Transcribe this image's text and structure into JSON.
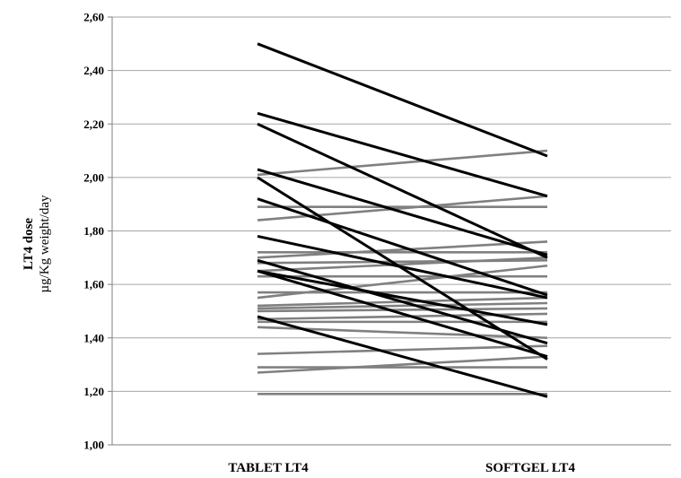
{
  "chart_data": {
    "type": "line",
    "categories": [
      "TABLET  LT4",
      "SOFTGEL LT4"
    ],
    "ylabel_line1": "LT4 dose",
    "ylabel_line2": "µg/Kg weight/day",
    "ylim": [
      1.0,
      2.6
    ],
    "yticks": [
      "1,00",
      "1,20",
      "1,40",
      "1,60",
      "1,80",
      "2,00",
      "2,20",
      "2,40",
      "2,60"
    ],
    "ytick_values": [
      1.0,
      1.2,
      1.4,
      1.6,
      1.8,
      2.0,
      2.2,
      2.4,
      2.6
    ],
    "grid": true,
    "series_colors": {
      "decrease": "#000000",
      "no-decrease": "#808080"
    },
    "series": [
      {
        "group": "decrease",
        "values": [
          2.5,
          2.08
        ]
      },
      {
        "group": "decrease",
        "values": [
          2.24,
          1.93
        ]
      },
      {
        "group": "decrease",
        "values": [
          2.2,
          1.7
        ]
      },
      {
        "group": "decrease",
        "values": [
          2.03,
          1.71
        ]
      },
      {
        "group": "decrease",
        "values": [
          2.0,
          1.32
        ]
      },
      {
        "group": "decrease",
        "values": [
          1.92,
          1.56
        ]
      },
      {
        "group": "decrease",
        "values": [
          1.78,
          1.55
        ]
      },
      {
        "group": "decrease",
        "values": [
          1.69,
          1.38
        ]
      },
      {
        "group": "decrease",
        "values": [
          1.65,
          1.45
        ]
      },
      {
        "group": "decrease",
        "values": [
          1.65,
          1.33
        ]
      },
      {
        "group": "decrease",
        "values": [
          1.48,
          1.18
        ]
      },
      {
        "group": "no-decrease",
        "values": [
          2.01,
          2.1
        ]
      },
      {
        "group": "no-decrease",
        "values": [
          1.89,
          1.89
        ]
      },
      {
        "group": "no-decrease",
        "values": [
          1.84,
          1.93
        ]
      },
      {
        "group": "no-decrease",
        "values": [
          1.72,
          1.72
        ]
      },
      {
        "group": "no-decrease",
        "values": [
          1.7,
          1.76
        ]
      },
      {
        "group": "no-decrease",
        "values": [
          1.68,
          1.69
        ]
      },
      {
        "group": "no-decrease",
        "values": [
          1.65,
          1.7
        ]
      },
      {
        "group": "no-decrease",
        "values": [
          1.63,
          1.63
        ]
      },
      {
        "group": "no-decrease",
        "values": [
          1.57,
          1.57
        ]
      },
      {
        "group": "no-decrease",
        "values": [
          1.55,
          1.67
        ]
      },
      {
        "group": "no-decrease",
        "values": [
          1.52,
          1.55
        ]
      },
      {
        "group": "no-decrease",
        "values": [
          1.51,
          1.53
        ]
      },
      {
        "group": "no-decrease",
        "values": [
          1.5,
          1.51
        ]
      },
      {
        "group": "no-decrease",
        "values": [
          1.47,
          1.49
        ]
      },
      {
        "group": "no-decrease",
        "values": [
          1.46,
          1.46
        ]
      },
      {
        "group": "no-decrease",
        "values": [
          1.44,
          1.4
        ]
      },
      {
        "group": "no-decrease",
        "values": [
          1.34,
          1.37
        ]
      },
      {
        "group": "no-decrease",
        "values": [
          1.29,
          1.29
        ]
      },
      {
        "group": "no-decrease",
        "values": [
          1.27,
          1.33
        ]
      },
      {
        "group": "no-decrease",
        "values": [
          1.19,
          1.19
        ]
      }
    ]
  }
}
